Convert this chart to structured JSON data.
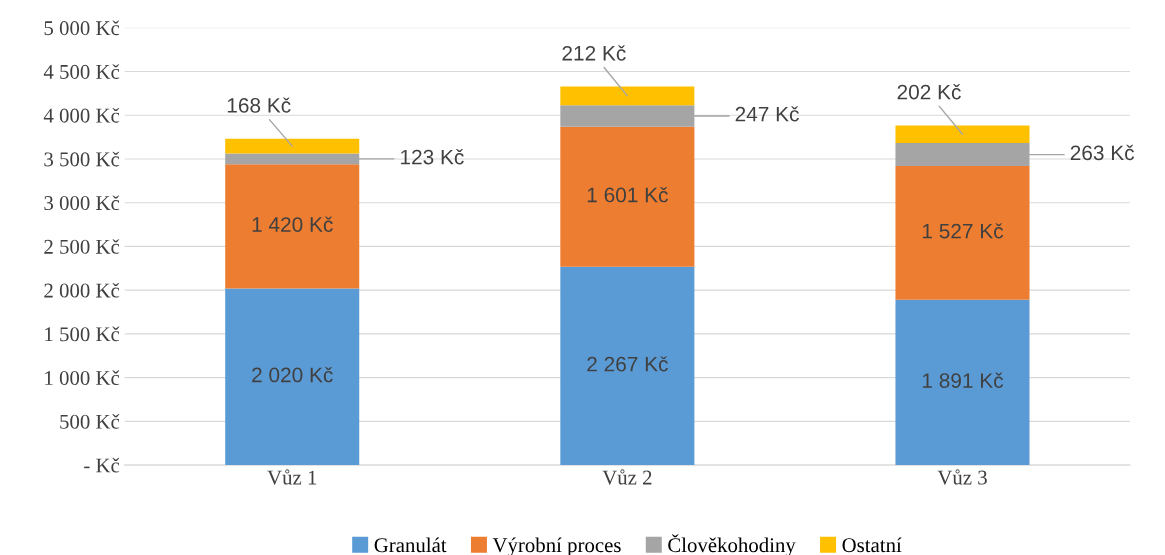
{
  "chart_data": {
    "type": "bar",
    "stacked": true,
    "categories": [
      "Vůz 1",
      "Vůz 2",
      "Vůz 3"
    ],
    "series": [
      {
        "name": "Granulát",
        "color": "#5b9bd5",
        "values": [
          2020,
          2267,
          1891
        ],
        "value_labels": [
          "2 020 Kč",
          "2 267 Kč",
          "1 891 Kč"
        ]
      },
      {
        "name": "Výrobní proces",
        "color": "#ed7d31",
        "values": [
          1420,
          1601,
          1527
        ],
        "value_labels": [
          "1 420 Kč",
          "1 601 Kč",
          "1 527 Kč"
        ]
      },
      {
        "name": "Člověkohodiny",
        "color": "#a5a5a5",
        "values": [
          123,
          247,
          263
        ],
        "value_labels": [
          "123 Kč",
          "247 Kč",
          "263 Kč"
        ]
      },
      {
        "name": "Ostatní",
        "color": "#ffc000",
        "values": [
          168,
          212,
          202
        ],
        "value_labels": [
          "168 Kč",
          "212 Kč",
          "202 Kč"
        ]
      }
    ],
    "ylim": [
      0,
      5000
    ],
    "yticks": [
      {
        "value": 0,
        "label": "- Kč"
      },
      {
        "value": 500,
        "label": "500 Kč"
      },
      {
        "value": 1000,
        "label": "1 000 Kč"
      },
      {
        "value": 1500,
        "label": "1 500 Kč"
      },
      {
        "value": 2000,
        "label": "2 000 Kč"
      },
      {
        "value": 2500,
        "label": "2 500 Kč"
      },
      {
        "value": 3000,
        "label": "3 000 Kč"
      },
      {
        "value": 3500,
        "label": "3 500 Kč"
      },
      {
        "value": 4000,
        "label": "4 000 Kč"
      },
      {
        "value": 4500,
        "label": "4 500 Kč"
      },
      {
        "value": 5000,
        "label": "5 000 Kč"
      }
    ],
    "grid": "y",
    "legend": "bottom"
  }
}
